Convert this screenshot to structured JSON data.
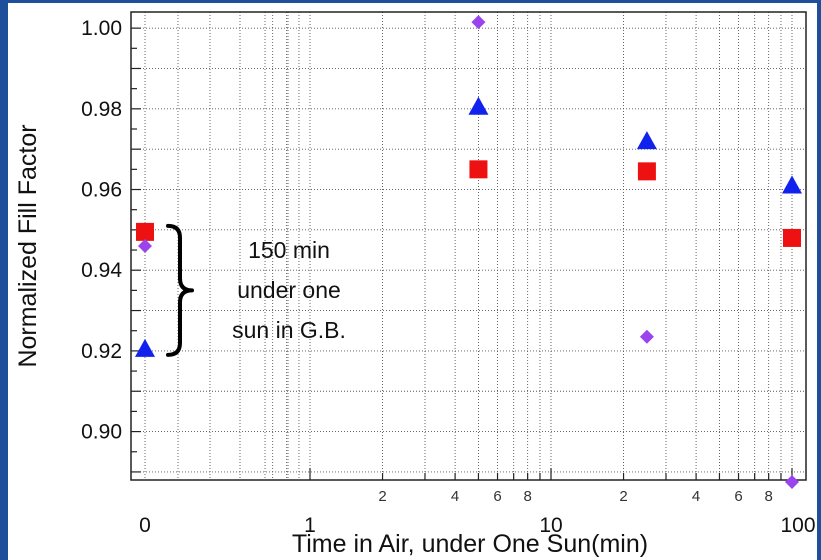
{
  "chart_data": {
    "type": "scatter",
    "title": "",
    "xlabel": "Time in Air, under One Sun(min)",
    "ylabel": "Normalized Fill Factor",
    "x_scale": "log (with separate 0 point)",
    "xlim": [
      0.6,
      100
    ],
    "ylim": [
      0.888,
      1.004
    ],
    "y_ticks": [
      {
        "v": 0.9,
        "label": "0.90"
      },
      {
        "v": 0.92,
        "label": "0.92"
      },
      {
        "v": 0.94,
        "label": "0.94"
      },
      {
        "v": 0.96,
        "label": "0.96"
      },
      {
        "v": 0.98,
        "label": "0.98"
      },
      {
        "v": 1.0,
        "label": "1.00"
      }
    ],
    "x_major_ticks": [
      {
        "v": 1,
        "label": "1"
      },
      {
        "v": 10,
        "label": "10"
      },
      {
        "v": 100,
        "label": "100"
      }
    ],
    "x_zero_label": "0",
    "x_minor_labels": [
      {
        "v": 2,
        "label": "2"
      },
      {
        "v": 4,
        "label": "4"
      },
      {
        "v": 6,
        "label": "6"
      },
      {
        "v": 8,
        "label": "8"
      },
      {
        "v": 20,
        "label": "2"
      },
      {
        "v": 40,
        "label": "4"
      },
      {
        "v": 60,
        "label": "6"
      },
      {
        "v": 80,
        "label": "8"
      }
    ],
    "grid": true,
    "series": [
      {
        "marker": "square",
        "color": "#ee1111",
        "points": [
          {
            "x": 0,
            "y": 0.9495
          },
          {
            "x": 5,
            "y": 0.965
          },
          {
            "x": 25,
            "y": 0.9645
          },
          {
            "x": 100,
            "y": 0.948
          }
        ]
      },
      {
        "marker": "triangle",
        "color": "#1122ee",
        "points": [
          {
            "x": 0,
            "y": 0.9205
          },
          {
            "x": 5,
            "y": 0.9805
          },
          {
            "x": 25,
            "y": 0.972
          },
          {
            "x": 100,
            "y": 0.961
          }
        ]
      },
      {
        "marker": "diamond",
        "color": "#9a44ee",
        "points": [
          {
            "x": 0,
            "y": 0.946
          },
          {
            "x": 5,
            "y": 1.0015
          },
          {
            "x": 25,
            "y": 0.9235
          },
          {
            "x": 100,
            "y": 0.8875
          }
        ]
      }
    ],
    "annotation": {
      "lines": [
        "150 min",
        "under one",
        "sun in G.B."
      ],
      "brace_range": [
        0.919,
        0.951
      ]
    }
  }
}
